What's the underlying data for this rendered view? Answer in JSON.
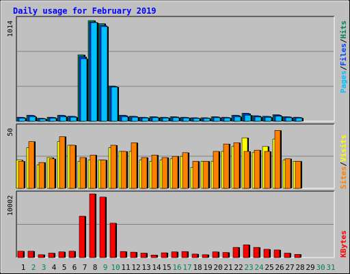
{
  "title": "Daily usage for February 2019",
  "colors": {
    "background": "#C0C0C0",
    "title": "#0000FF",
    "hits": "#00805C",
    "files": "#0040FF",
    "pages": "#00C0FF",
    "visits": "#FFFF00",
    "sites": "#FF8000",
    "kbytes": "#FF0000",
    "weekday_label": "#000000",
    "weekend_label": "#00805C"
  },
  "chart_data": [
    {
      "type": "bar",
      "name": "hits-files-pages",
      "ymax_label": "1014",
      "ylim": [
        0,
        1014
      ],
      "legend": [
        "Pages",
        "/",
        "Files",
        "/",
        "Hits"
      ],
      "categories": [
        "1",
        "2",
        "3",
        "4",
        "5",
        "6",
        "7",
        "8",
        "9",
        "10",
        "11",
        "12",
        "13",
        "14",
        "15",
        "16",
        "17",
        "18",
        "19",
        "20",
        "21",
        "22",
        "23",
        "24",
        "25",
        "26",
        "27",
        "28",
        "29",
        "30",
        "31"
      ],
      "series": [
        {
          "name": "Hits",
          "values": [
            40,
            60,
            30,
            40,
            60,
            50,
            660,
            1000,
            970,
            350,
            60,
            50,
            40,
            45,
            40,
            45,
            40,
            35,
            35,
            45,
            40,
            60,
            80,
            55,
            50,
            65,
            45,
            40,
            null,
            null,
            null
          ]
        },
        {
          "name": "Files",
          "values": [
            38,
            56,
            28,
            38,
            56,
            48,
            640,
            985,
            950,
            345,
            56,
            48,
            38,
            43,
            38,
            43,
            38,
            33,
            33,
            43,
            38,
            56,
            75,
            52,
            48,
            60,
            43,
            38,
            null,
            null,
            null
          ]
        },
        {
          "name": "Pages",
          "values": [
            30,
            45,
            22,
            30,
            45,
            40,
            620,
            980,
            940,
            340,
            45,
            40,
            32,
            35,
            32,
            35,
            32,
            28,
            28,
            35,
            32,
            45,
            60,
            42,
            38,
            50,
            35,
            32,
            null,
            null,
            null
          ]
        }
      ]
    },
    {
      "type": "bar",
      "name": "visits-sites",
      "ymax_label": "50",
      "ylim": [
        0,
        50
      ],
      "legend": [
        "Sites",
        "/",
        "Visits"
      ],
      "categories": [
        "1",
        "2",
        "3",
        "4",
        "5",
        "6",
        "7",
        "8",
        "9",
        "10",
        "11",
        "12",
        "13",
        "14",
        "15",
        "16",
        "17",
        "18",
        "19",
        "20",
        "21",
        "22",
        "23",
        "24",
        "25",
        "26",
        "27",
        "28",
        "29",
        "30",
        "31"
      ],
      "series": [
        {
          "name": "Visits",
          "values": [
            23,
            33,
            19,
            25,
            38,
            35,
            22,
            23,
            23,
            33,
            30,
            30,
            23,
            22,
            23,
            24,
            26,
            17,
            22,
            22,
            30,
            34,
            41,
            29,
            34,
            40,
            23,
            22,
            null,
            null,
            null
          ]
        },
        {
          "name": "Sites",
          "values": [
            22,
            38,
            21,
            24,
            42,
            35,
            25,
            27,
            23,
            35,
            30,
            37,
            25,
            27,
            25,
            26,
            29,
            22,
            22,
            30,
            36,
            37,
            30,
            31,
            30,
            47,
            24,
            22,
            null,
            null,
            null
          ]
        }
      ]
    },
    {
      "type": "bar",
      "name": "kbytes",
      "ymax_label": "10002",
      "ylim": [
        0,
        10002
      ],
      "legend": [
        "KBytes"
      ],
      "categories": [
        "1",
        "2",
        "3",
        "4",
        "5",
        "6",
        "7",
        "8",
        "9",
        "10",
        "11",
        "12",
        "13",
        "14",
        "15",
        "16",
        "17",
        "18",
        "19",
        "20",
        "21",
        "22",
        "23",
        "24",
        "25",
        "26",
        "27",
        "28",
        "29",
        "30",
        "31"
      ],
      "series": [
        {
          "name": "KBytes",
          "values": [
            1000,
            1000,
            450,
            700,
            900,
            1000,
            6500,
            10000,
            9500,
            5400,
            950,
            850,
            700,
            400,
            750,
            900,
            950,
            550,
            450,
            900,
            800,
            1600,
            2000,
            1600,
            1300,
            1200,
            700,
            500,
            null,
            null,
            null
          ]
        }
      ]
    }
  ],
  "weekend_days": [
    2,
    3,
    9,
    10,
    16,
    17,
    23,
    24,
    30,
    31
  ]
}
